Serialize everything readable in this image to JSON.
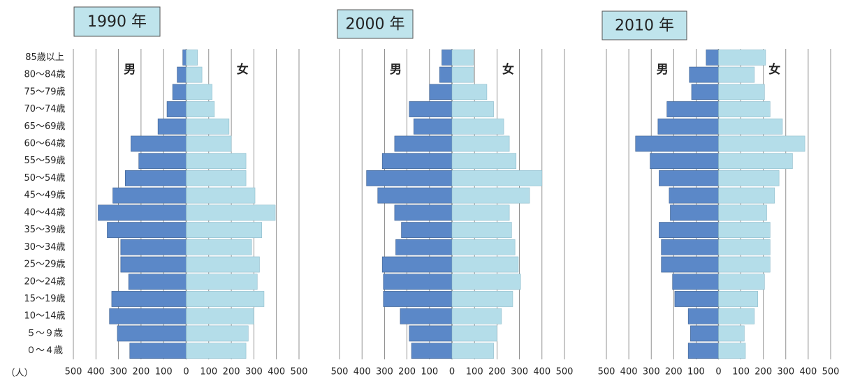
{
  "chart_data": [
    {
      "type": "pyramid",
      "title": "1990 年",
      "xlabel": "（人）",
      "categories": [
        "85歳以上",
        "80～84歳",
        "75～79歳",
        "70～74歳",
        "65～69歳",
        "60～64歳",
        "55～59歳",
        "50～54歳",
        "45～49歳",
        "40～44歳",
        "35～39歳",
        "30～34歳",
        "25～29歳",
        "20～24歳",
        "15～19歳",
        "10～14歳",
        "５～９歳",
        "０～４歳"
      ],
      "series": [
        {
          "name": "男",
          "color": "#5b88c8",
          "values": [
            15,
            40,
            60,
            85,
            125,
            245,
            210,
            270,
            325,
            390,
            350,
            290,
            290,
            255,
            330,
            340,
            305,
            250
          ]
        },
        {
          "name": "女",
          "color": "#b4dde9",
          "values": [
            50,
            70,
            115,
            125,
            190,
            200,
            265,
            265,
            305,
            395,
            335,
            290,
            325,
            315,
            345,
            300,
            275,
            265
          ]
        }
      ],
      "xlim": [
        -500,
        500
      ],
      "xticks": [
        {
          "value": -500,
          "label": "500"
        },
        {
          "value": -400,
          "label": "400"
        },
        {
          "value": -300,
          "label": "300"
        },
        {
          "value": -200,
          "label": "200"
        },
        {
          "value": -100,
          "label": "100"
        },
        0,
        100,
        200,
        300,
        400,
        500
      ],
      "grid": true
    },
    {
      "type": "pyramid",
      "title": "2000 年",
      "series": [
        {
          "name": "男",
          "color": "#5b88c8",
          "values": [
            45,
            55,
            100,
            190,
            170,
            255,
            310,
            380,
            330,
            255,
            225,
            250,
            310,
            305,
            305,
            230,
            190,
            180
          ]
        },
        {
          "name": "女",
          "color": "#b4dde9",
          "values": [
            95,
            95,
            155,
            185,
            230,
            255,
            285,
            400,
            345,
            255,
            265,
            280,
            295,
            305,
            270,
            220,
            200,
            185
          ]
        }
      ],
      "xlim": [
        -500,
        500
      ],
      "xticks": [
        {
          "value": -500,
          "label": "500"
        },
        {
          "value": -400,
          "label": "400"
        },
        {
          "value": -300,
          "label": "300"
        },
        {
          "value": -200,
          "label": "200"
        },
        {
          "value": -100,
          "label": "100"
        },
        0,
        100,
        200,
        300,
        400,
        500
      ],
      "grid": true
    },
    {
      "type": "pyramid",
      "title": "2010 年",
      "series": [
        {
          "name": "男",
          "color": "#5b88c8",
          "values": [
            55,
            130,
            120,
            230,
            270,
            370,
            305,
            265,
            220,
            215,
            265,
            255,
            255,
            205,
            195,
            135,
            125,
            135
          ]
        },
        {
          "name": "女",
          "color": "#b4dde9",
          "values": [
            210,
            160,
            205,
            230,
            285,
            385,
            330,
            270,
            250,
            215,
            230,
            230,
            230,
            205,
            175,
            160,
            115,
            120
          ]
        }
      ],
      "xlim": [
        -500,
        500
      ],
      "xticks": [
        {
          "value": -500,
          "label": "500"
        },
        {
          "value": -400,
          "label": "400"
        },
        {
          "value": -300,
          "label": "300"
        },
        {
          "value": -200,
          "label": "200"
        },
        {
          "value": -100,
          "label": "100"
        },
        0,
        100,
        200,
        300,
        400,
        500
      ],
      "grid": true
    }
  ]
}
